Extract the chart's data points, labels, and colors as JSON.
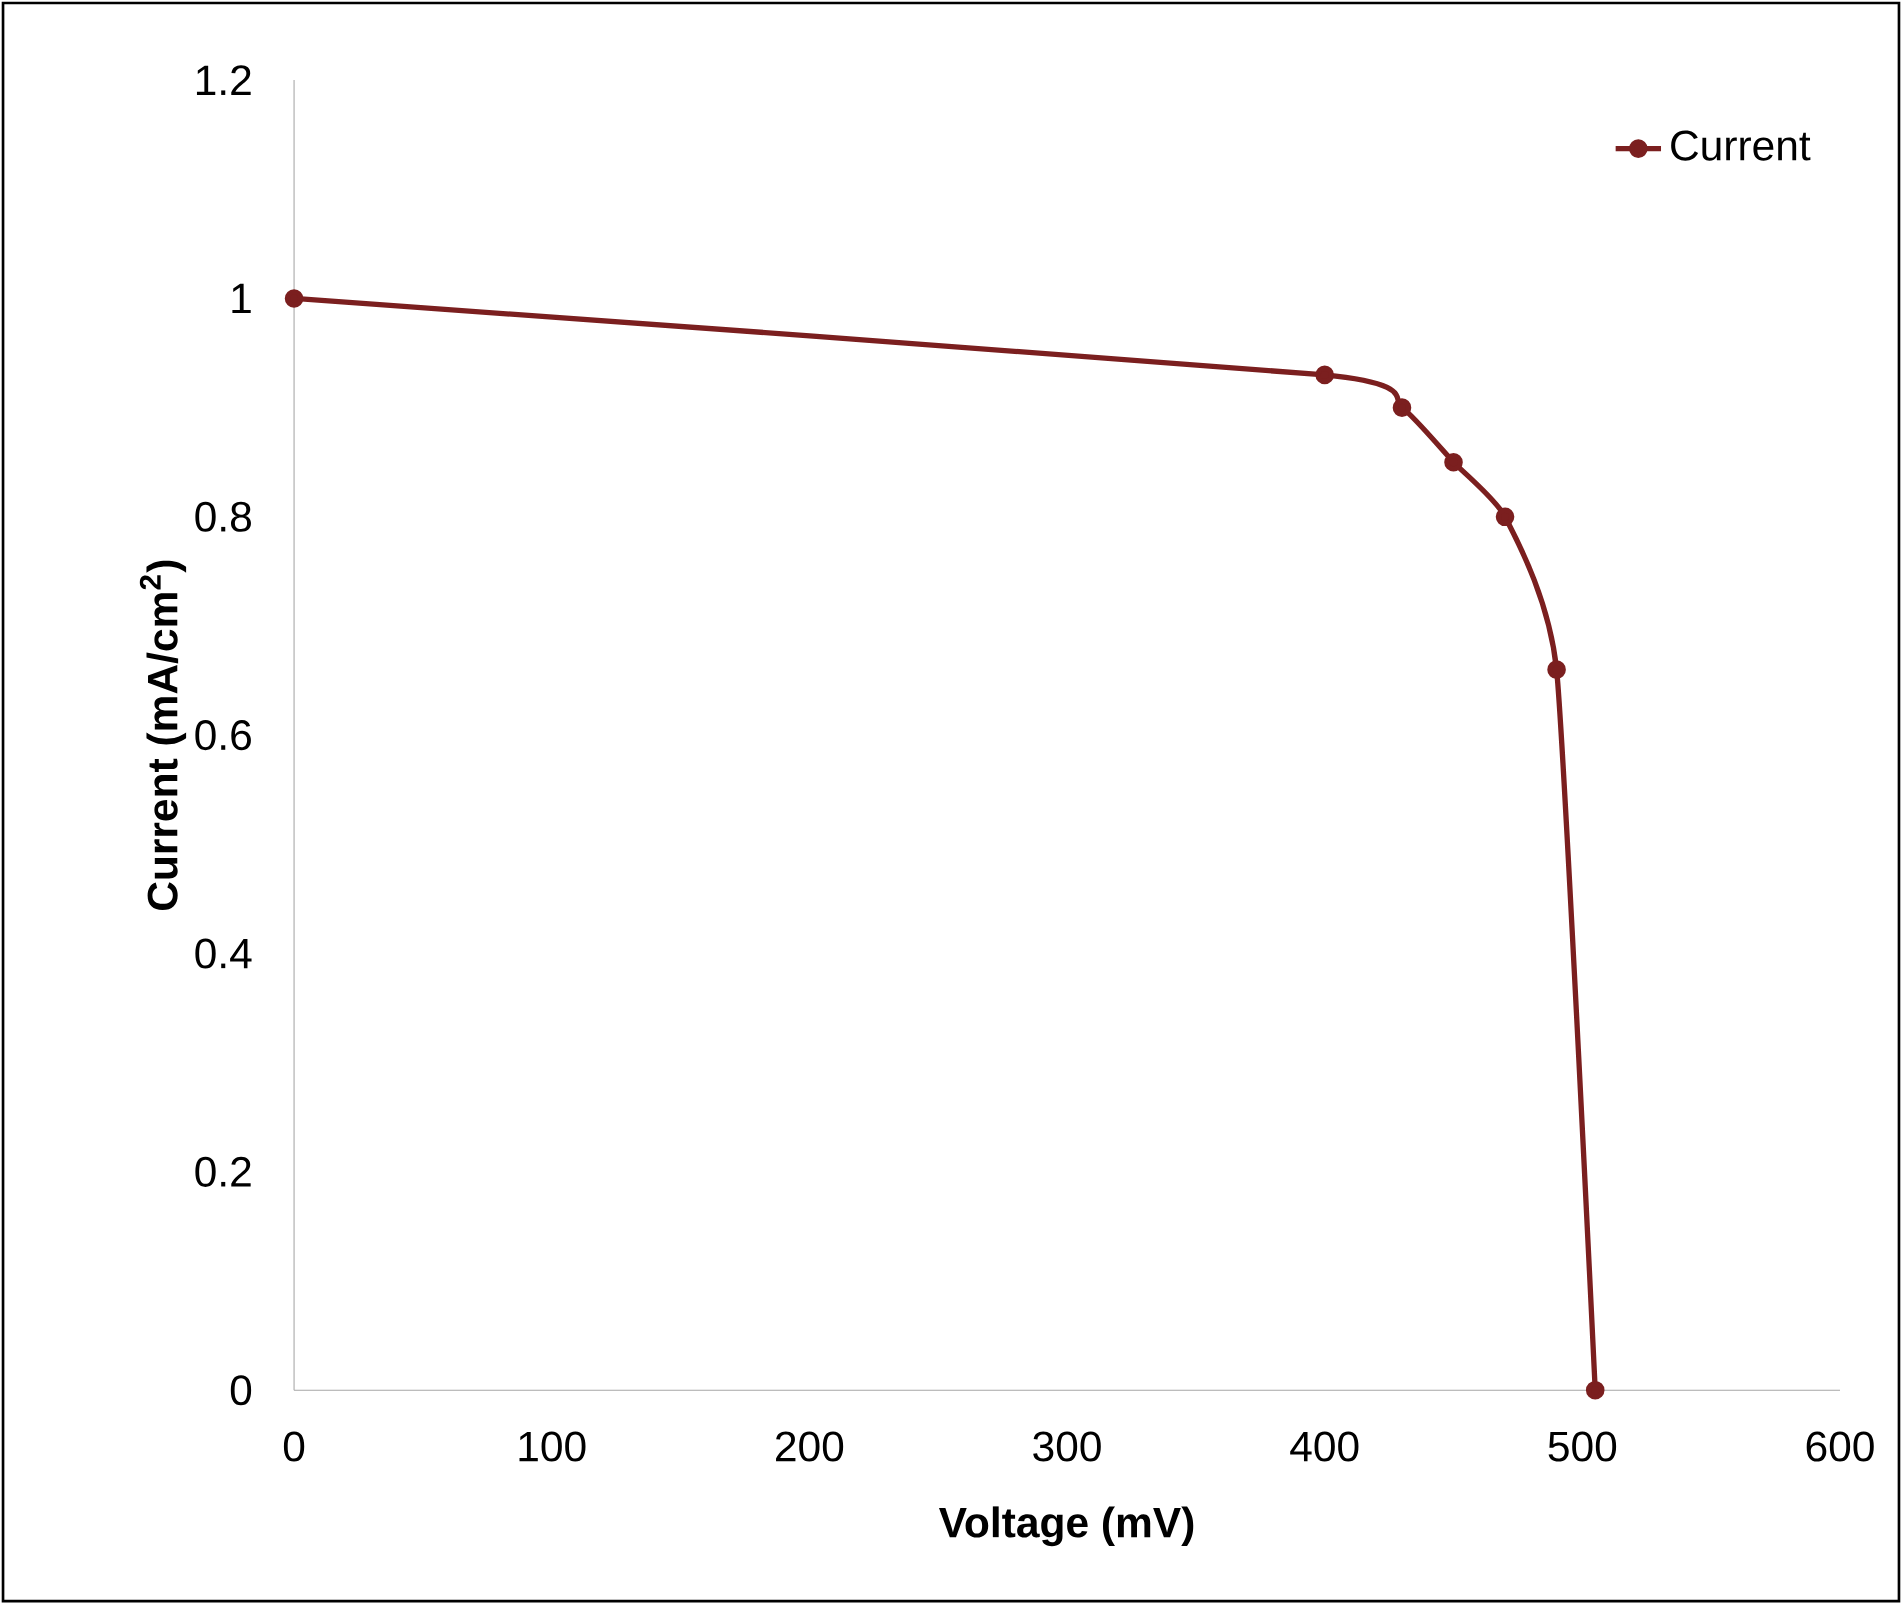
{
  "chart_data": {
    "type": "line",
    "xlabel": "Voltage (mV)",
    "ylabel": "Current (mA/cm$^{2}$)",
    "x": [
      0,
      400,
      430,
      450,
      470,
      490,
      505
    ],
    "series": [
      {
        "name": "Current",
        "color": "#7b1f1f",
        "values": [
          1,
          0.93,
          0.9,
          0.85,
          0.8,
          0.66,
          0
        ]
      }
    ],
    "xlim": [
      0,
      600
    ],
    "ylim": [
      0,
      1.2
    ],
    "xticks": [
      0,
      100,
      200,
      300,
      400,
      500,
      600
    ],
    "yticks": [
      0,
      0.2,
      0.4,
      0.6,
      0.8,
      1,
      1.2
    ],
    "legend": "top right",
    "marker": "circle",
    "line_style": "solid",
    "grid": false
  }
}
